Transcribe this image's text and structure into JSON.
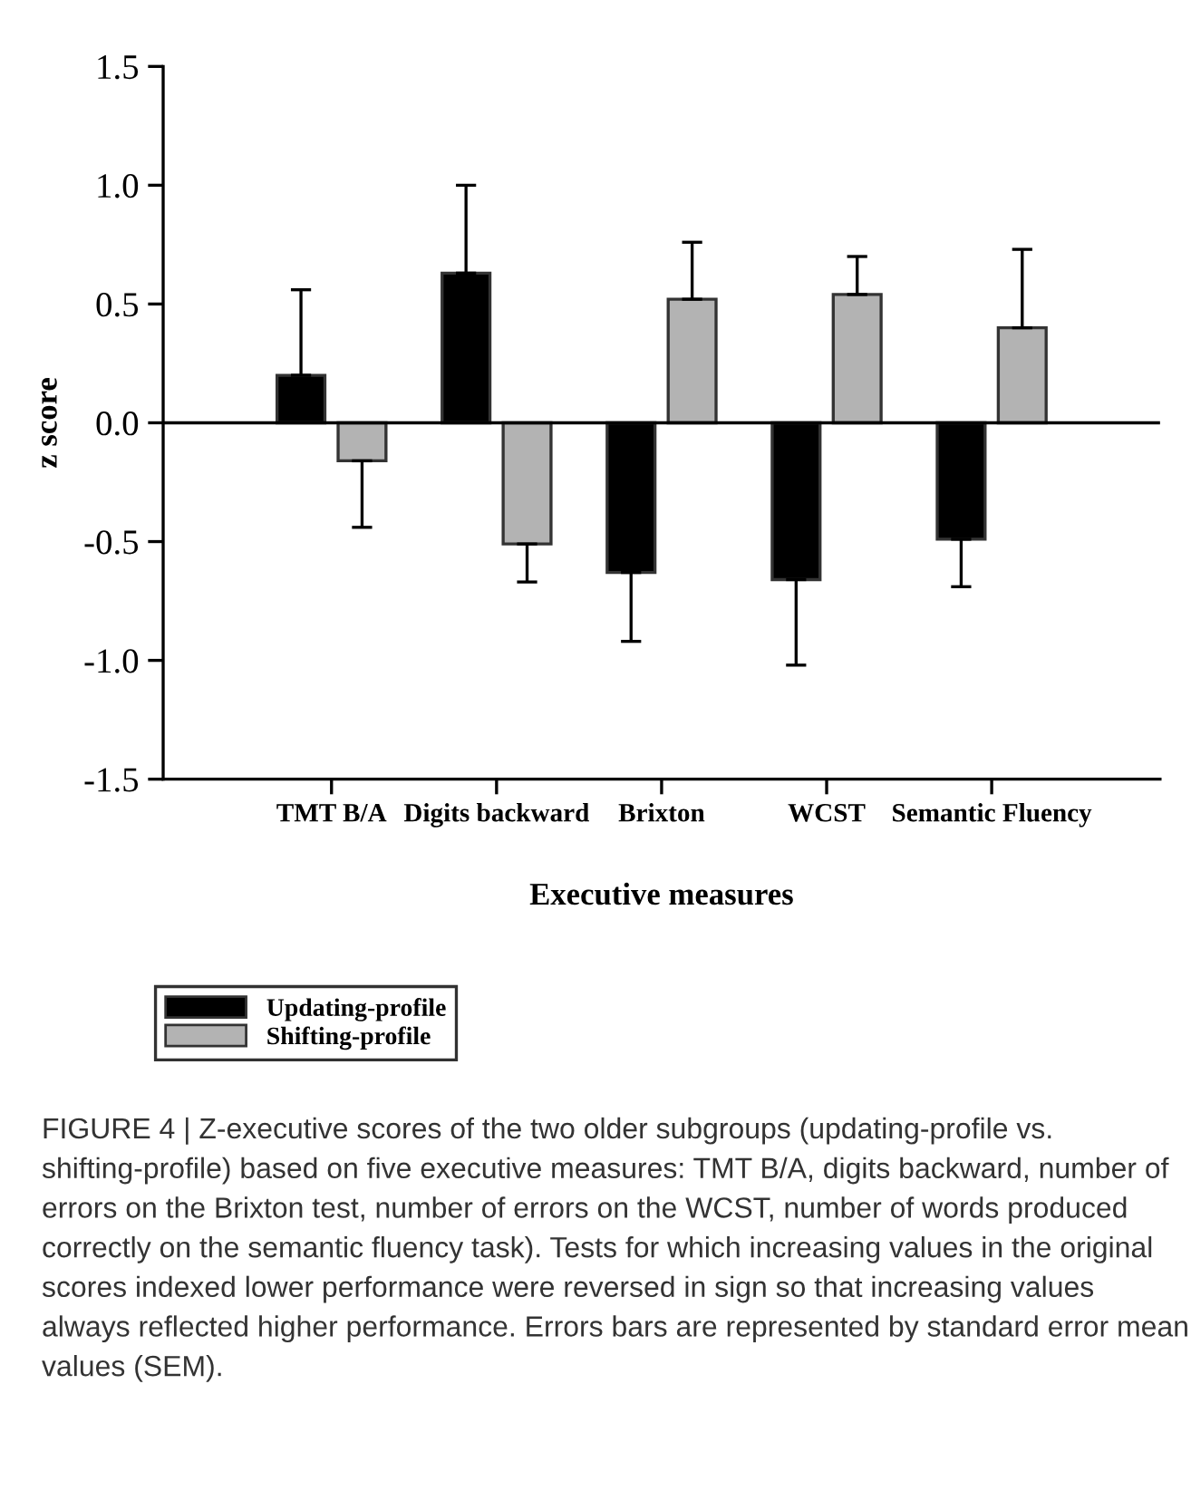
{
  "chart_data": {
    "type": "bar",
    "xlabel": "Executive measures",
    "ylabel": "z score",
    "categories": [
      "TMT B/A",
      "Digits backward",
      "Brixton",
      "WCST",
      "Semantic Fluency"
    ],
    "series": [
      {
        "name": "Updating-profile",
        "color": "#000000",
        "values": [
          0.2,
          0.63,
          -0.63,
          -0.66,
          -0.49
        ],
        "errors": [
          [
            0.2,
            0.56
          ],
          [
            0.63,
            1.0
          ],
          [
            -0.92,
            -0.63
          ],
          [
            -1.02,
            -0.66
          ],
          [
            -0.69,
            -0.49
          ]
        ]
      },
      {
        "name": "Shifting-profile",
        "color": "#b3b3b3",
        "values": [
          -0.16,
          -0.51,
          0.52,
          0.54,
          0.4
        ],
        "errors": [
          [
            -0.44,
            -0.16
          ],
          [
            -0.67,
            -0.51
          ],
          [
            0.52,
            0.76
          ],
          [
            0.54,
            0.7
          ],
          [
            0.4,
            0.73
          ]
        ]
      }
    ],
    "ylim": [
      -1.5,
      1.5
    ],
    "yticks": [
      {
        "value": -1.5,
        "label": "-1.5"
      },
      {
        "value": -1.0,
        "label": "-1.0"
      },
      {
        "value": -0.5,
        "label": "-0.5"
      },
      {
        "value": 0.0,
        "label": "0.0"
      },
      {
        "value": 0.5,
        "label": "0.5"
      },
      {
        "value": 1.0,
        "label": "1.0"
      },
      {
        "value": 1.5,
        "label": "1.5"
      }
    ],
    "ref_lines": [
      {
        "axis": "y",
        "value": 0,
        "color": "#000000"
      }
    ],
    "grid": false,
    "legend": "bottom left",
    "annotations": [
      "FIGURE 4 | Z-executive scores of the two older subgroups (updating-profile vs. shifting-profile) based on five executive measures: TMT B/A, digits backward, number of errors on the Brixton test, number of errors on the WCST, number of words produced correctly on the semantic fluency task). Tests for which increasing values in the original scores indexed lower performance were reversed in sign so that increasing values always reflected higher performance. Errors bars are represented by standard error mean values (SEM)."
    ]
  }
}
